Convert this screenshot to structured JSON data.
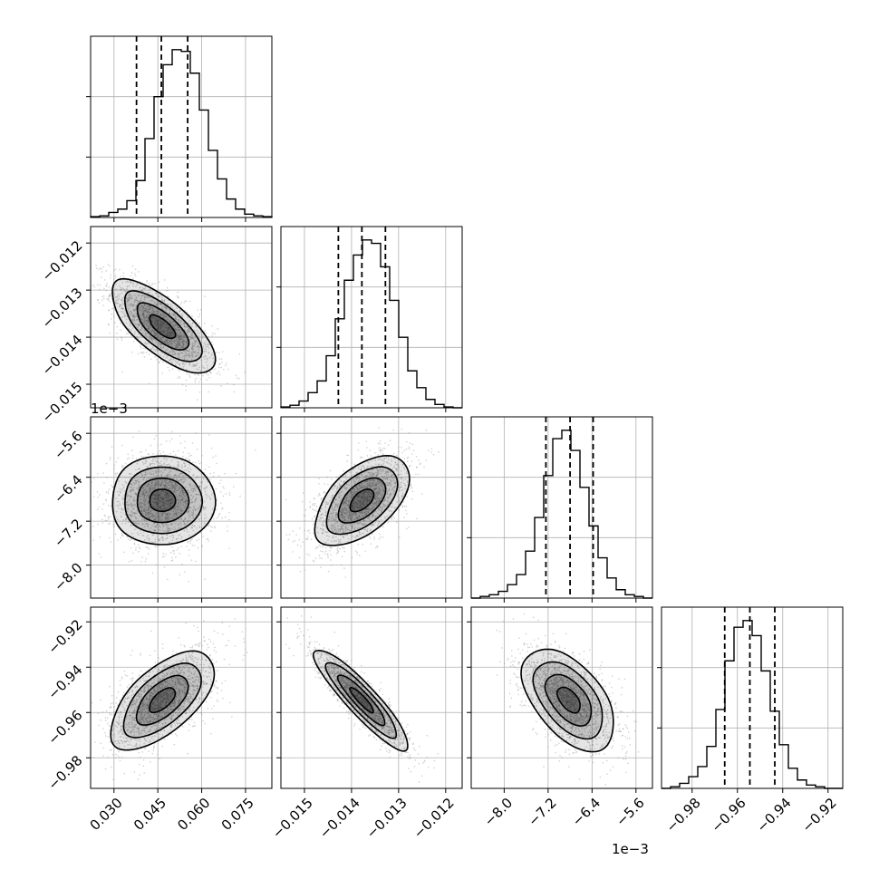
{
  "chart_data": {
    "type": "corner",
    "grid": true,
    "parameters": [
      {
        "range": [
          0.022,
          0.084
        ],
        "ticks": [
          0.03,
          0.045,
          0.06,
          0.075
        ],
        "tick_labels": [
          "0.030",
          "0.045",
          "0.060",
          "0.075"
        ],
        "quantiles": [
          0.0377,
          0.0462,
          0.0552
        ],
        "mean": 0.0465,
        "std": 0.0088,
        "offset_label": ""
      },
      {
        "range": [
          -0.0155,
          -0.01165
        ],
        "ticks": [
          -0.015,
          -0.014,
          -0.013,
          -0.012
        ],
        "tick_labels": [
          "−0.015",
          "−0.014",
          "−0.013",
          "−0.012"
        ],
        "quantiles": [
          -0.01428,
          -0.01378,
          -0.01328
        ],
        "mean": -0.01378,
        "std": 0.0005,
        "offset_label": ""
      },
      {
        "range": [
          -8.6,
          -5.3
        ],
        "ticks": [
          -8.0,
          -7.2,
          -6.4,
          -5.6
        ],
        "tick_labels": [
          "−8.0",
          "−7.2",
          "−6.4",
          "−5.6"
        ],
        "quantiles": [
          -7.24,
          -6.8,
          -6.38
        ],
        "mean": -6.82,
        "std": 0.42,
        "offset_label": "1e−3"
      },
      {
        "range": [
          -0.9935,
          -0.9135
        ],
        "ticks": [
          -0.98,
          -0.96,
          -0.94,
          -0.92
        ],
        "tick_labels": [
          "−0.98",
          "−0.96",
          "−0.94",
          "−0.92"
        ],
        "quantiles": [
          -0.9656,
          -0.9545,
          -0.9435
        ],
        "mean": -0.9545,
        "std": 0.011,
        "offset_label": ""
      }
    ],
    "correlations": [
      [
        1.0,
        -0.7,
        0.0,
        0.6
      ],
      [
        -0.7,
        1.0,
        0.55,
        -0.9
      ],
      [
        0.0,
        0.55,
        1.0,
        -0.5
      ],
      [
        0.6,
        -0.9,
        -0.5,
        1.0
      ]
    ],
    "histograms": [
      [
        0.5,
        1,
        3,
        5,
        10,
        22,
        47,
        72,
        91,
        100,
        99,
        86,
        64,
        40,
        23,
        11,
        5,
        2,
        1,
        0.5
      ],
      [
        0.5,
        1.5,
        4,
        9,
        16,
        31,
        53,
        76,
        91,
        100,
        98,
        84,
        64,
        42,
        22,
        12,
        5,
        2,
        0.5,
        0
      ],
      [
        0,
        1,
        2,
        4,
        8,
        14,
        28,
        48,
        73,
        95,
        100,
        88,
        66,
        43,
        24,
        12,
        5,
        2,
        1,
        0
      ],
      [
        0,
        1,
        3,
        7,
        13,
        25,
        47,
        76,
        96,
        100,
        91,
        70,
        46,
        26,
        12,
        5,
        2,
        1,
        0,
        0
      ]
    ],
    "hist_bins": 20,
    "hist_ylim": [
      0,
      108
    ],
    "contour_levels_sigma": [
      0.5,
      1.0,
      1.5,
      2.0
    ],
    "quantile_line_style": "dashed"
  },
  "colors": {
    "line": "#000000",
    "grid": "#b0b0b0",
    "points": "#9a9a9a",
    "background": "#ffffff"
  }
}
